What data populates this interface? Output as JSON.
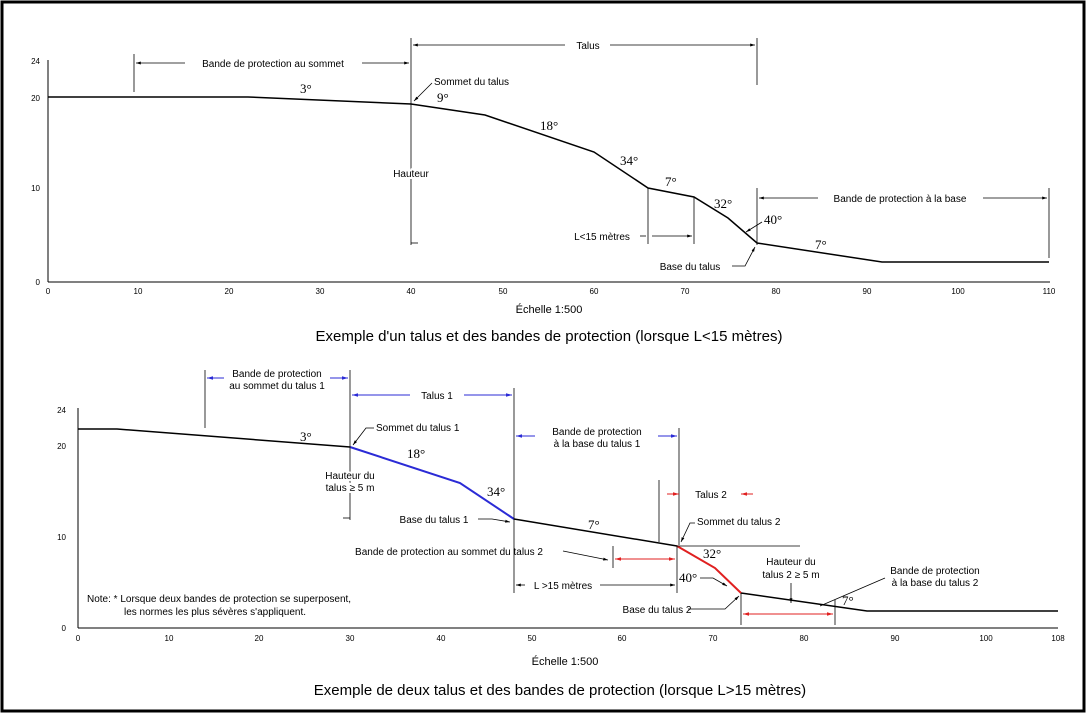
{
  "colors": {
    "frame": "#000000",
    "profile": "#000000",
    "talus1": "#2b2bd6",
    "talus2": "#e02020",
    "band_blue": "#2b2bd6",
    "band_red": "#e02020"
  },
  "top": {
    "caption": "Exemple d'un talus et des bandes de protection (lorsque L<15 mètres)",
    "scale": "Échelle 1:500",
    "x_ticks": [
      "0",
      "10",
      "20",
      "30",
      "40",
      "50",
      "60",
      "70",
      "80",
      "90",
      "100",
      "110"
    ],
    "y_ticks": [
      "0",
      "10",
      "20",
      "24"
    ],
    "labels": {
      "band_top": "Bande de protection au sommet",
      "talus": "Talus",
      "sommet": "Sommet du talus",
      "hauteur": "Hauteur",
      "l15": "L<15 mètres",
      "base": "Base du talus",
      "band_base": "Bande de protection à la base"
    },
    "angles": [
      "3°",
      "9°",
      "18°",
      "34°",
      "7°",
      "32°",
      "40°",
      "7°"
    ]
  },
  "bottom": {
    "caption": "Exemple de deux talus et des bandes de protection (lorsque L>15 mètres)",
    "scale": "Échelle 1:500",
    "x_ticks": [
      "0",
      "10",
      "20",
      "30",
      "40",
      "50",
      "60",
      "70",
      "80",
      "90",
      "100",
      "108"
    ],
    "y_ticks": [
      "0",
      "10",
      "20",
      "24"
    ],
    "labels": {
      "band_top1_a": "Bande de protection",
      "band_top1_b": "au sommet du talus 1",
      "talus1": "Talus 1",
      "sommet1": "Sommet du talus 1",
      "hauteur1_a": "Hauteur du",
      "hauteur1_b": "talus ≥ 5 m",
      "base1": "Base du talus 1",
      "band_base1_a": "Bande de protection",
      "band_base1_b": "à la base du talus 1",
      "talus2": "Talus 2",
      "sommet2": "Sommet du talus 2",
      "band_top2": "Bande de protection au sommet du talus 2",
      "l15": "L >15 mètres",
      "hauteur2_a": "Hauteur du",
      "hauteur2_b": "talus 2 ≥ 5 m",
      "band_base2_a": "Bande de protection",
      "band_base2_b": "à la base du talus 2",
      "base2": "Base du talus 2",
      "note_a": "Note: * Lorsque deux bandes de protection se superposent,",
      "note_b": "les normes les plus sévères s'appliquent."
    },
    "angles": [
      "3°",
      "18°",
      "34°",
      "7°",
      "32°",
      "40°",
      "7°"
    ]
  }
}
